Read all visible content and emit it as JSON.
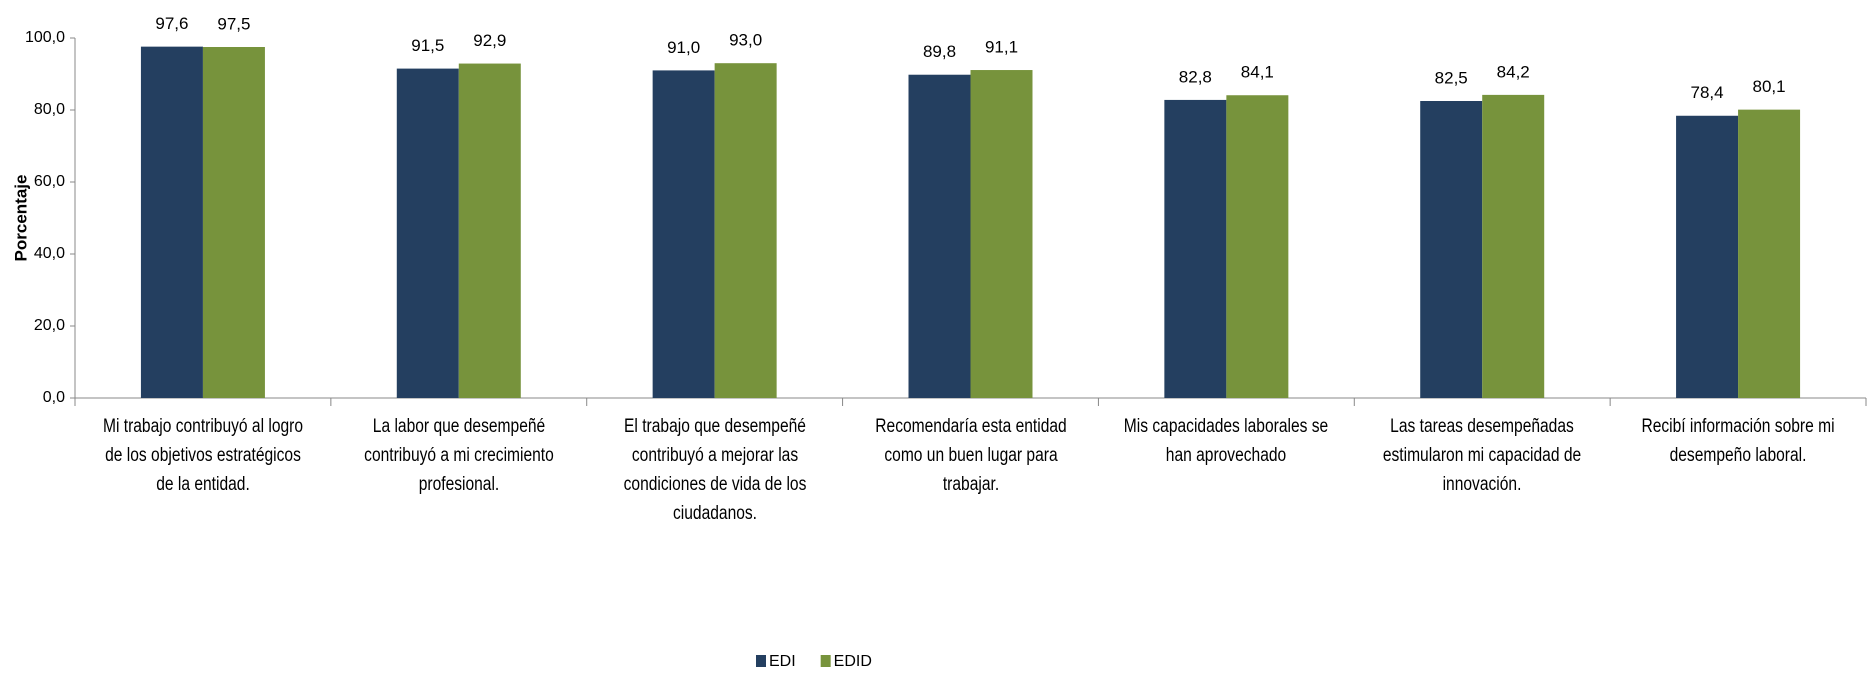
{
  "chart_data": {
    "type": "bar",
    "y_label": "Porcentaje",
    "categories": [
      "Mi trabajo contribuyó al logro de los objetivos estratégicos de la entidad.",
      "La labor que desempeñé contribuyó a mi crecimiento profesional.",
      "El trabajo que desempeñé contribuyó a mejorar las condiciones de vida de los ciudadanos.",
      "Recomendaría esta entidad como un buen lugar para trabajar.",
      "Mis capacidades laborales se han aprovechado",
      "Las tareas desempeñadas estimularon mi capacidad de innovación.",
      "Recibí información sobre mi desempeño laboral."
    ],
    "series": [
      {
        "name": "EDI",
        "color": "#243f60",
        "values": [
          97.6,
          91.5,
          91.0,
          89.8,
          82.8,
          82.5,
          78.4
        ],
        "value_labels": [
          "97,6",
          "91,5",
          "91,0",
          "89,8",
          "82,8",
          "82,5",
          "78,4"
        ]
      },
      {
        "name": "EDID",
        "color": "#77933c",
        "values": [
          97.5,
          92.9,
          93.0,
          91.1,
          84.1,
          84.2,
          80.1
        ],
        "value_labels": [
          "97,5",
          "92,9",
          "93,0",
          "91,1",
          "84,1",
          "84,2",
          "80,1"
        ]
      }
    ],
    "ylim": [
      0,
      100
    ],
    "yticks": [
      {
        "value": 0,
        "label": "0,0"
      },
      {
        "value": 20,
        "label": "20,0"
      },
      {
        "value": 40,
        "label": "40,0"
      },
      {
        "value": 60,
        "label": "60,0"
      },
      {
        "value": 80,
        "label": "80,0"
      },
      {
        "value": 100,
        "label": "100,0"
      }
    ],
    "legend": "bottom"
  }
}
